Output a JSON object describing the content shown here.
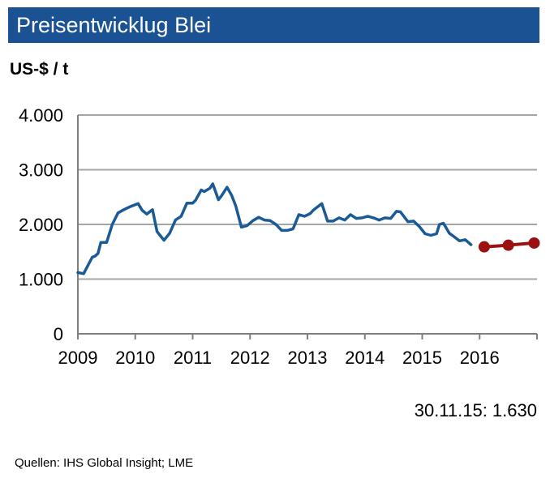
{
  "header": {
    "title": "Preisentwicklug Blei"
  },
  "chart_data": {
    "type": "line",
    "title": "Preisentwicklug Blei",
    "ylabel": "US-$ / t",
    "xlabel": "",
    "ylim": [
      0,
      4000
    ],
    "xlim": [
      2009,
      2017
    ],
    "grid": true,
    "y_ticks": [
      {
        "value": 0,
        "label": "0"
      },
      {
        "value": 1000,
        "label": "1.000"
      },
      {
        "value": 2000,
        "label": "2.000"
      },
      {
        "value": 3000,
        "label": "3.000"
      },
      {
        "value": 4000,
        "label": "4.000"
      }
    ],
    "x_ticks": [
      {
        "value": 2009,
        "label": "2009"
      },
      {
        "value": 2010,
        "label": "2010"
      },
      {
        "value": 2011,
        "label": "2011"
      },
      {
        "value": 2012,
        "label": "2012"
      },
      {
        "value": 2013,
        "label": "2013"
      },
      {
        "value": 2014,
        "label": "2014"
      },
      {
        "value": 2015,
        "label": "2015"
      },
      {
        "value": 2016,
        "label": "2016"
      }
    ],
    "series": [
      {
        "color": "#1a5a96",
        "style": "line",
        "x": [
          2009.0,
          2009.1,
          2009.25,
          2009.3,
          2009.35,
          2009.4,
          2009.5,
          2009.6,
          2009.7,
          2009.8,
          2009.9,
          2010.05,
          2010.12,
          2010.2,
          2010.3,
          2010.38,
          2010.5,
          2010.6,
          2010.7,
          2010.8,
          2010.9,
          2011.0,
          2011.05,
          2011.15,
          2011.2,
          2011.3,
          2011.35,
          2011.45,
          2011.5,
          2011.6,
          2011.68,
          2011.75,
          2011.85,
          2011.95,
          2012.05,
          2012.15,
          2012.25,
          2012.35,
          2012.45,
          2012.55,
          2012.65,
          2012.75,
          2012.85,
          2012.95,
          2013.05,
          2013.1,
          2013.25,
          2013.35,
          2013.45,
          2013.55,
          2013.65,
          2013.75,
          2013.85,
          2013.95,
          2014.05,
          2014.15,
          2014.25,
          2014.35,
          2014.45,
          2014.55,
          2014.62,
          2014.75,
          2014.85,
          2014.95,
          2015.05,
          2015.15,
          2015.25,
          2015.3,
          2015.37,
          2015.47,
          2015.55,
          2015.65,
          2015.75,
          2015.85
        ],
        "y": [
          1120,
          1100,
          1400,
          1420,
          1470,
          1670,
          1670,
          2000,
          2210,
          2270,
          2320,
          2380,
          2260,
          2190,
          2270,
          1870,
          1710,
          1840,
          2080,
          2150,
          2390,
          2390,
          2440,
          2630,
          2600,
          2660,
          2740,
          2450,
          2520,
          2680,
          2530,
          2340,
          1950,
          1980,
          2070,
          2130,
          2080,
          2070,
          2000,
          1890,
          1890,
          1920,
          2180,
          2150,
          2200,
          2260,
          2380,
          2060,
          2060,
          2120,
          2080,
          2180,
          2110,
          2120,
          2150,
          2120,
          2080,
          2120,
          2110,
          2240,
          2230,
          2050,
          2060,
          1960,
          1830,
          1800,
          1830,
          2000,
          2020,
          1840,
          1780,
          1700,
          1720,
          1630
        ]
      },
      {
        "color": "#9b1111",
        "style": "line-markers",
        "x": [
          2016.08,
          2016.5,
          2016.95
        ],
        "y": [
          1590,
          1620,
          1660
        ]
      }
    ],
    "annotation": "30.11.15: 1.630"
  },
  "footer": {
    "sources": "Quellen: IHS Global Insight; LME"
  }
}
